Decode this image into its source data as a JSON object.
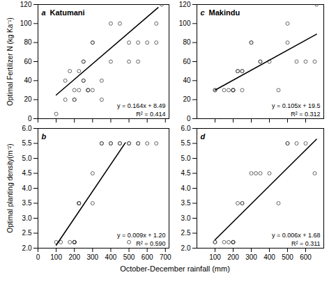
{
  "chart_data": [
    {
      "type": "scatter",
      "panel_label": "a",
      "title": "Katumani",
      "ylabel": "Optimal Fertilizer N (kg Ka⁻¹)",
      "xlim": [
        0,
        720
      ],
      "xticks": [
        0,
        100,
        200,
        300,
        400,
        500,
        600,
        700
      ],
      "ylim": [
        0,
        120
      ],
      "yticks": [
        0,
        20,
        40,
        60,
        80,
        100,
        120
      ],
      "tick_labels": "y",
      "annotations": [
        "y = 0.164x + 8.49",
        "R² = 0.414"
      ],
      "series": [
        {
          "type": "scatter",
          "marker": "hollow",
          "color": "#444444",
          "x": [
            100,
            150,
            150,
            175,
            200,
            200,
            200,
            225,
            225,
            250,
            250,
            250,
            250,
            275,
            275,
            275,
            300,
            300,
            300,
            350,
            350,
            400,
            400,
            450,
            500,
            500,
            550,
            550,
            600,
            650,
            650,
            680
          ],
          "values": [
            5,
            20,
            40,
            50,
            20,
            30,
            20,
            30,
            50,
            40,
            40,
            60,
            60,
            30,
            30,
            30,
            80,
            80,
            30,
            20,
            40,
            60,
            100,
            100,
            60,
            80,
            60,
            80,
            80,
            80,
            100,
            120
          ]
        },
        {
          "type": "line",
          "line_style": "solid",
          "color": "#000000",
          "x": [
            100,
            660
          ],
          "values": [
            24.89,
            116.73
          ]
        }
      ]
    },
    {
      "type": "scatter",
      "panel_label": "c",
      "title": "Makindu",
      "xlim": [
        0,
        700
      ],
      "xticks": [
        100,
        200,
        300,
        400,
        500,
        600
      ],
      "ylim": [
        0,
        120
      ],
      "yticks": [
        0,
        20,
        40,
        60,
        80,
        100,
        120
      ],
      "tick_labels": "y",
      "annotations": [
        "y = 0.105x + 19.5",
        "R² = 0.312"
      ],
      "series": [
        {
          "type": "scatter",
          "marker": "hollow",
          "color": "#444444",
          "x": [
            100,
            100,
            150,
            175,
            200,
            200,
            200,
            200,
            225,
            225,
            250,
            250,
            250,
            300,
            300,
            350,
            350,
            400,
            450,
            500,
            500,
            550,
            600,
            650,
            660
          ],
          "values": [
            30,
            30,
            30,
            30,
            30,
            30,
            30,
            30,
            50,
            50,
            30,
            50,
            50,
            80,
            80,
            60,
            60,
            60,
            30,
            80,
            100,
            60,
            60,
            60,
            120
          ]
        },
        {
          "type": "line",
          "line_style": "solid",
          "color": "#000000",
          "x": [
            100,
            660
          ],
          "values": [
            30,
            88.8
          ]
        }
      ]
    },
    {
      "type": "scatter",
      "panel_label": "b",
      "ylabel": "Optimal planting density(m⁻²)",
      "xlabel": "October-December rainfall (mm)",
      "xlim": [
        0,
        720
      ],
      "xticks": [
        0,
        100,
        200,
        300,
        400,
        500,
        600,
        700
      ],
      "ylim": [
        2.0,
        6.0
      ],
      "yticks": [
        {
          "value": 2,
          "label": "2.0"
        },
        2.5,
        {
          "value": 3,
          "label": "3.0"
        },
        3.5,
        {
          "value": 4,
          "label": "4.0"
        },
        4.5,
        {
          "value": 5,
          "label": "5.0"
        },
        5.5,
        {
          "value": 6,
          "label": "6.0"
        }
      ],
      "annotations": [
        "y = 0.009x + 1.20",
        "R² = 0.590"
      ],
      "series": [
        {
          "type": "scatter",
          "marker": "hollow",
          "color": "#444444",
          "x": [
            100,
            125,
            175,
            200,
            200,
            200,
            200,
            200,
            225,
            225,
            225,
            300,
            300,
            350,
            350,
            400,
            400,
            450,
            450,
            500,
            500,
            500,
            550,
            550,
            600,
            650
          ],
          "values": [
            2.2,
            2.2,
            2.2,
            2.2,
            2.2,
            2.2,
            2.2,
            2.2,
            3.5,
            3.5,
            3.5,
            4.5,
            3.5,
            5.5,
            5.5,
            5.5,
            5.5,
            5.5,
            5.5,
            5.5,
            5.5,
            2.2,
            5.5,
            5.5,
            5.5,
            5.5
          ]
        },
        {
          "type": "line",
          "line_style": "solid",
          "color": "#000000",
          "x": [
            100,
            480
          ],
          "values": [
            2.1,
            5.52
          ]
        }
      ]
    },
    {
      "type": "scatter",
      "panel_label": "d",
      "xlim": [
        0,
        700
      ],
      "xticks": [
        100,
        200,
        300,
        400,
        500,
        600
      ],
      "ylim": [
        2.0,
        6.0
      ],
      "yticks": [
        {
          "value": 2,
          "label": "2.0"
        },
        2.5,
        {
          "value": 3,
          "label": "3.0"
        },
        3.5,
        {
          "value": 4,
          "label": "4.0"
        },
        4.5,
        {
          "value": 5,
          "label": "5.0"
        },
        5.5,
        {
          "value": 6,
          "label": "6.0"
        }
      ],
      "annotations": [
        "y = 0.006x + 1.68",
        "R² = 0.311"
      ],
      "series": [
        {
          "type": "scatter",
          "marker": "hollow",
          "color": "#444444",
          "x": [
            100,
            100,
            150,
            175,
            200,
            200,
            200,
            200,
            225,
            250,
            250,
            300,
            325,
            350,
            400,
            450,
            500,
            500,
            550,
            600,
            650
          ],
          "values": [
            2.2,
            2.2,
            2.2,
            2.2,
            2.2,
            2.2,
            2.2,
            2.2,
            3.5,
            3.5,
            3.5,
            4.5,
            4.5,
            4.5,
            4.5,
            3.5,
            5.5,
            5.5,
            5.5,
            5.5,
            4.5
          ]
        },
        {
          "type": "line",
          "line_style": "solid",
          "color": "#000000",
          "x": [
            100,
            660
          ],
          "values": [
            2.28,
            5.64
          ]
        }
      ]
    }
  ]
}
